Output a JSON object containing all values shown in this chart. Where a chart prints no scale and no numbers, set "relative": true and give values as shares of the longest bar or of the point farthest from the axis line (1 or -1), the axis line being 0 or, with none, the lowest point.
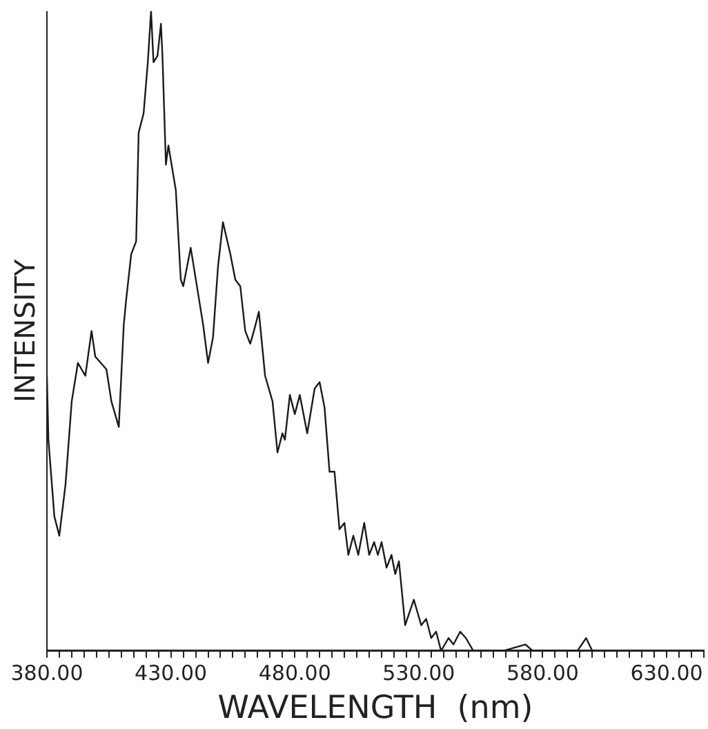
{
  "chart_data": {
    "type": "line",
    "xlabel": "WAVELENGTH  (nm)",
    "ylabel": "INTENSITY",
    "relative": true,
    "grid": false,
    "legend": false,
    "marker": "none",
    "line_style": "solid",
    "xlim": [
      380,
      645
    ],
    "xticks": [
      {
        "value": 380,
        "label": "380.00"
      },
      {
        "value": 385,
        "label": null
      },
      {
        "value": 390,
        "label": null
      },
      {
        "value": 395,
        "label": null
      },
      {
        "value": 400,
        "label": null
      },
      {
        "value": 405,
        "label": null
      },
      {
        "value": 410,
        "label": null
      },
      {
        "value": 415,
        "label": null
      },
      {
        "value": 420,
        "label": null
      },
      {
        "value": 425,
        "label": null
      },
      {
        "value": 430,
        "label": "430.00"
      },
      {
        "value": 435,
        "label": null
      },
      {
        "value": 440,
        "label": null
      },
      {
        "value": 445,
        "label": null
      },
      {
        "value": 450,
        "label": null
      },
      {
        "value": 455,
        "label": null
      },
      {
        "value": 460,
        "label": null
      },
      {
        "value": 465,
        "label": null
      },
      {
        "value": 470,
        "label": null
      },
      {
        "value": 475,
        "label": null
      },
      {
        "value": 480,
        "label": "480.00"
      },
      {
        "value": 485,
        "label": null
      },
      {
        "value": 490,
        "label": null
      },
      {
        "value": 495,
        "label": null
      },
      {
        "value": 500,
        "label": null
      },
      {
        "value": 505,
        "label": null
      },
      {
        "value": 510,
        "label": null
      },
      {
        "value": 515,
        "label": null
      },
      {
        "value": 520,
        "label": null
      },
      {
        "value": 525,
        "label": null
      },
      {
        "value": 530,
        "label": "530.00"
      },
      {
        "value": 535,
        "label": null
      },
      {
        "value": 540,
        "label": null
      },
      {
        "value": 545,
        "label": null
      },
      {
        "value": 550,
        "label": null
      },
      {
        "value": 555,
        "label": null
      },
      {
        "value": 560,
        "label": null
      },
      {
        "value": 565,
        "label": null
      },
      {
        "value": 570,
        "label": null
      },
      {
        "value": 575,
        "label": null
      },
      {
        "value": 580,
        "label": "580.00"
      },
      {
        "value": 585,
        "label": null
      },
      {
        "value": 590,
        "label": null
      },
      {
        "value": 595,
        "label": null
      },
      {
        "value": 600,
        "label": null
      },
      {
        "value": 605,
        "label": null
      },
      {
        "value": 610,
        "label": null
      },
      {
        "value": 615,
        "label": null
      },
      {
        "value": 620,
        "label": null
      },
      {
        "value": 625,
        "label": null
      },
      {
        "value": 630,
        "label": "630.00"
      },
      {
        "value": 635,
        "label": null
      },
      {
        "value": 640,
        "label": null
      },
      {
        "value": 645,
        "label": null
      }
    ],
    "series": [
      {
        "color": "#1a1a1a",
        "x": [
          380,
          380.6,
          383,
          385,
          387.5,
          390,
          392.5,
          395.5,
          398,
          399.5,
          404,
          406,
          409,
          411,
          412,
          414,
          416,
          417,
          419,
          420.7,
          422,
          423,
          424.6,
          426,
          426.6,
          428,
          429,
          432,
          434,
          435,
          438,
          443,
          445,
          447,
          449,
          451,
          454,
          456,
          458,
          460,
          462,
          463.5,
          465.5,
          468,
          471,
          473,
          475,
          476,
          478,
          480,
          482,
          485,
          488,
          490,
          492,
          494,
          496,
          498,
          500,
          501.6,
          503.6,
          505.6,
          508,
          510,
          512,
          513.5,
          515,
          517,
          519,
          520.5,
          522,
          524.5,
          528,
          531,
          533,
          535,
          537,
          539,
          542,
          544,
          546.7,
          549,
          552,
          564,
          573,
          576,
          586,
          594,
          597.5,
          600,
          602
        ],
        "values": [
          0.43,
          0.33,
          0.21,
          0.18,
          0.26,
          0.39,
          0.45,
          0.43,
          0.5,
          0.46,
          0.44,
          0.39,
          0.35,
          0.51,
          0.55,
          0.62,
          0.64,
          0.81,
          0.84,
          0.92,
          1.0,
          0.92,
          0.93,
          0.98,
          0.93,
          0.76,
          0.79,
          0.72,
          0.58,
          0.57,
          0.63,
          0.51,
          0.45,
          0.49,
          0.6,
          0.67,
          0.62,
          0.58,
          0.57,
          0.5,
          0.48,
          0.5,
          0.53,
          0.43,
          0.39,
          0.31,
          0.34,
          0.33,
          0.4,
          0.37,
          0.4,
          0.34,
          0.41,
          0.42,
          0.38,
          0.28,
          0.28,
          0.19,
          0.2,
          0.15,
          0.18,
          0.15,
          0.2,
          0.15,
          0.17,
          0.15,
          0.17,
          0.13,
          0.15,
          0.12,
          0.14,
          0.04,
          0.08,
          0.04,
          0.05,
          0.02,
          0.03,
          0,
          0.02,
          0.01,
          0.03,
          0.02,
          0,
          0,
          0.01,
          0,
          0,
          0,
          0.02,
          0,
          0
        ]
      }
    ]
  }
}
